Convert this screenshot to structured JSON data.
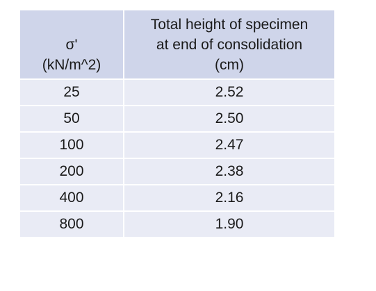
{
  "table": {
    "header": {
      "col1": [
        "σ'",
        "(kN/m^2)"
      ],
      "col2": [
        "Total height of specimen",
        "at end of consolidation",
        "(cm)"
      ]
    },
    "rows": [
      {
        "stress": "25",
        "height": "2.52"
      },
      {
        "stress": "50",
        "height": "2.50"
      },
      {
        "stress": "100",
        "height": "2.47"
      },
      {
        "stress": "200",
        "height": "2.38"
      },
      {
        "stress": "400",
        "height": "2.16"
      },
      {
        "stress": "800",
        "height": "1.90"
      }
    ]
  },
  "colors": {
    "header_bg": "#cfd5ea",
    "row_bg": "#e9ebf5",
    "text": "#1a1a1a"
  }
}
